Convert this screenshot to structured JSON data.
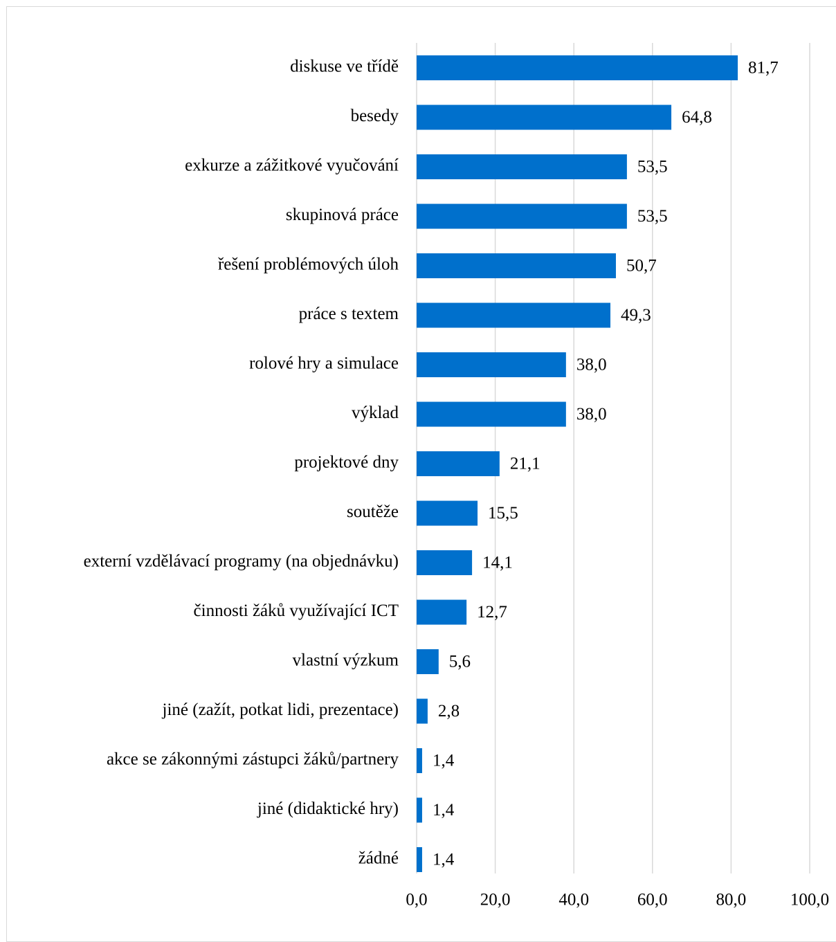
{
  "chart_data": {
    "type": "bar",
    "orientation": "horizontal",
    "title": "",
    "xlabel": "",
    "ylabel": "",
    "categories": [
      "diskuse ve třídě",
      "besedy",
      "exkurze a zážitkové vyučování",
      "skupinová práce",
      "řešení problémových úloh",
      "práce s textem",
      "rolové hry a simulace",
      "výklad",
      "projektové dny",
      "soutěže",
      "externí vzdělávací programy (na objednávku)",
      "činnosti žáků využívající ICT",
      "vlastní výzkum",
      "jiné (zažít, potkat lidi, prezentace)",
      "akce se zákonnými zástupci žáků/partnery",
      "jiné (didaktické hry)",
      "žádné"
    ],
    "values": [
      81.7,
      64.8,
      53.5,
      53.5,
      50.7,
      49.3,
      38.0,
      38.0,
      21.1,
      15.5,
      14.1,
      12.7,
      5.6,
      2.8,
      1.4,
      1.4,
      1.4
    ],
    "value_labels": [
      "81,7",
      "64,8",
      "53,5",
      "53,5",
      "50,7",
      "49,3",
      "38,0",
      "38,0",
      "21,1",
      "15,5",
      "14,1",
      "12,7",
      "5,6",
      "2,8",
      "1,4",
      "1,4",
      "1,4"
    ],
    "xlim": [
      0,
      100
    ],
    "x_ticks": [
      0,
      20,
      40,
      60,
      80,
      100
    ],
    "x_tick_labels": [
      "0,0",
      "20,0",
      "40,0",
      "60,0",
      "80,0",
      "100,0"
    ],
    "grid": "vertical",
    "legend": "none",
    "bar_color": "#0070cc",
    "grid_color": "#d9d9d9"
  }
}
